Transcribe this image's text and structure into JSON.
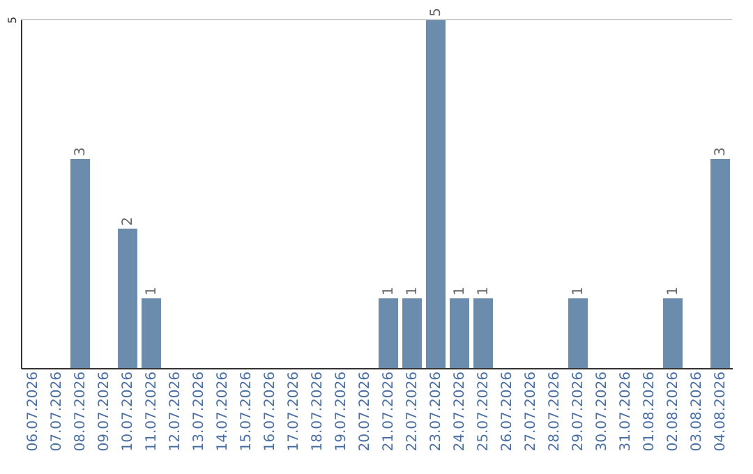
{
  "chart_data": {
    "type": "bar",
    "categories": [
      "06.07.2026",
      "07.07.2026",
      "08.07.2026",
      "09.07.2026",
      "10.07.2026",
      "11.07.2026",
      "12.07.2026",
      "13.07.2026",
      "14.07.2026",
      "15.07.2026",
      "16.07.2026",
      "17.07.2026",
      "18.07.2026",
      "19.07.2026",
      "20.07.2026",
      "21.07.2026",
      "22.07.2026",
      "23.07.2026",
      "24.07.2026",
      "25.07.2026",
      "26.07.2026",
      "27.07.2026",
      "28.07.2026",
      "29.07.2026",
      "30.07.2026",
      "31.07.2026",
      "01.08.2026",
      "02.08.2026",
      "03.08.2026",
      "04.08.2026"
    ],
    "values": [
      0,
      0,
      3,
      0,
      2,
      1,
      0,
      0,
      0,
      0,
      0,
      0,
      0,
      0,
      0,
      1,
      1,
      5,
      1,
      1,
      0,
      0,
      0,
      1,
      0,
      0,
      0,
      1,
      0,
      3
    ],
    "value_labels": [
      null,
      null,
      "3",
      null,
      "2",
      "1",
      null,
      null,
      null,
      null,
      null,
      null,
      null,
      null,
      null,
      "1",
      "1",
      "5",
      "1",
      "1",
      null,
      null,
      null,
      "1",
      null,
      null,
      null,
      "1",
      null,
      "3"
    ],
    "color": "#6b8cad",
    "ylim": [
      0,
      5
    ],
    "yticks": [
      5
    ],
    "ref_lines": [
      {
        "axis": "y",
        "value": 5,
        "color": "#cccccc"
      }
    ]
  }
}
